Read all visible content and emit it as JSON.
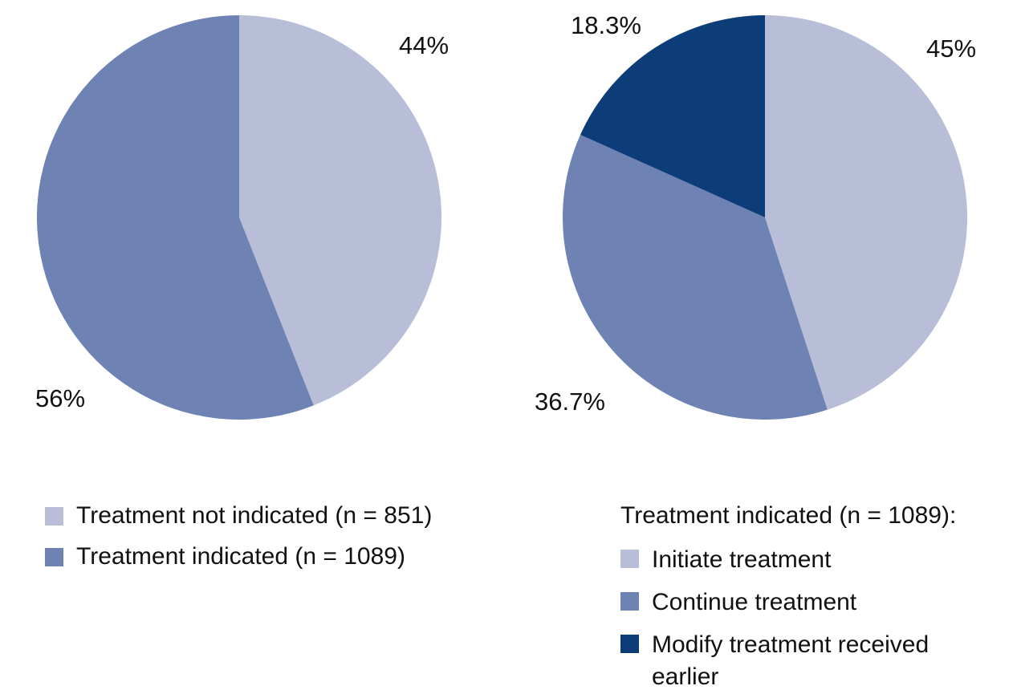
{
  "figure": {
    "background": "#ffffff",
    "text_color": "#111111"
  },
  "colors": {
    "light_blue": "#b9bed8",
    "medium_blue": "#6e82b4",
    "dark_navy": "#0d3d79"
  },
  "chart_data": [
    {
      "type": "pie",
      "name": "treatment-indication-pie",
      "start_angle_deg": -90,
      "direction": "clockwise",
      "slices": [
        {
          "label": "Treatment not indicated (n = 851)",
          "value": 44,
          "display": "44%",
          "color": "#b9bed8",
          "n": 851
        },
        {
          "label": "Treatment indicated (n = 1089)",
          "value": 56,
          "display": "56%",
          "color": "#6e82b4",
          "n": 1089
        }
      ],
      "legend_position": "bottom-left"
    },
    {
      "type": "pie",
      "name": "treatment-indicated-breakdown-pie",
      "start_angle_deg": -90,
      "direction": "clockwise",
      "legend_title": "Treatment indicated (n = 1089):",
      "slices": [
        {
          "label": "Initiate treatment",
          "value": 45,
          "display": "45%",
          "color": "#b9bed8"
        },
        {
          "label": "Continue treatment",
          "value": 36.7,
          "display": "36.7%",
          "color": "#6e82b4"
        },
        {
          "label": "Modify treatment received earlier",
          "value": 18.3,
          "display": "18.3%",
          "color": "#0d3d79"
        }
      ],
      "legend_position": "bottom-right"
    }
  ]
}
